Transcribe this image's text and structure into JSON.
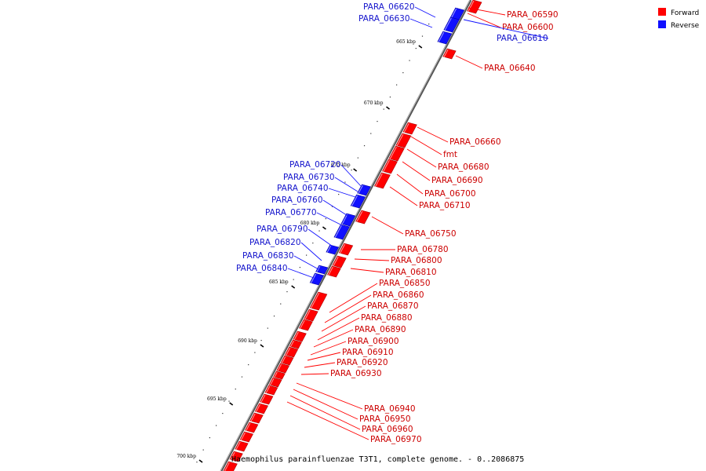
{
  "title": "Haemophilus parainfluenzae T3T1, complete genome. - 0..2086875",
  "colors": {
    "forward": "#ff0000",
    "reverse": "#1010ff",
    "label_forward": "#cc0000",
    "label_reverse": "#1414cc"
  },
  "legend": [
    {
      "label": "Forward",
      "color": "#ff0000"
    },
    {
      "label": "Reverse",
      "color": "#1010ff"
    }
  ],
  "ticks": [
    "665 kbp",
    "670 kbp",
    "675 kbp",
    "680 kbp",
    "685 kbp",
    "690 kbp",
    "695 kbp",
    "700 kbp"
  ],
  "genes": [
    {
      "label": "PARA_06590",
      "strand": "forward"
    },
    {
      "label": "PARA_06600",
      "strand": "forward"
    },
    {
      "label": "PARA_06610",
      "strand": "reverse"
    },
    {
      "label": "PARA_06620",
      "strand": "reverse"
    },
    {
      "label": "PARA_06630",
      "strand": "reverse"
    },
    {
      "label": "PARA_06640",
      "strand": "forward"
    },
    {
      "label": "PARA_06660",
      "strand": "forward"
    },
    {
      "label": "fmt",
      "strand": "forward"
    },
    {
      "label": "PARA_06680",
      "strand": "forward"
    },
    {
      "label": "PARA_06690",
      "strand": "forward"
    },
    {
      "label": "PARA_06700",
      "strand": "forward"
    },
    {
      "label": "PARA_06710",
      "strand": "forward"
    },
    {
      "label": "PARA_06720",
      "strand": "reverse"
    },
    {
      "label": "PARA_06730",
      "strand": "reverse"
    },
    {
      "label": "PARA_06740",
      "strand": "reverse"
    },
    {
      "label": "PARA_06750",
      "strand": "forward"
    },
    {
      "label": "PARA_06760",
      "strand": "reverse"
    },
    {
      "label": "PARA_06770",
      "strand": "reverse"
    },
    {
      "label": "PARA_06780",
      "strand": "forward"
    },
    {
      "label": "PARA_06790",
      "strand": "reverse"
    },
    {
      "label": "PARA_06800",
      "strand": "forward"
    },
    {
      "label": "PARA_06810",
      "strand": "forward"
    },
    {
      "label": "PARA_06820",
      "strand": "reverse"
    },
    {
      "label": "PARA_06830",
      "strand": "reverse"
    },
    {
      "label": "PARA_06840",
      "strand": "reverse"
    },
    {
      "label": "PARA_06850",
      "strand": "forward"
    },
    {
      "label": "PARA_06860",
      "strand": "forward"
    },
    {
      "label": "PARA_06870",
      "strand": "forward"
    },
    {
      "label": "PARA_06880",
      "strand": "forward"
    },
    {
      "label": "PARA_06890",
      "strand": "forward"
    },
    {
      "label": "PARA_06900",
      "strand": "forward"
    },
    {
      "label": "PARA_06910",
      "strand": "forward"
    },
    {
      "label": "PARA_06920",
      "strand": "forward"
    },
    {
      "label": "PARA_06930",
      "strand": "forward"
    },
    {
      "label": "PARA_06940",
      "strand": "forward"
    },
    {
      "label": "PARA_06950",
      "strand": "forward"
    },
    {
      "label": "PARA_06960",
      "strand": "forward"
    },
    {
      "label": "PARA_06970",
      "strand": "forward"
    }
  ]
}
